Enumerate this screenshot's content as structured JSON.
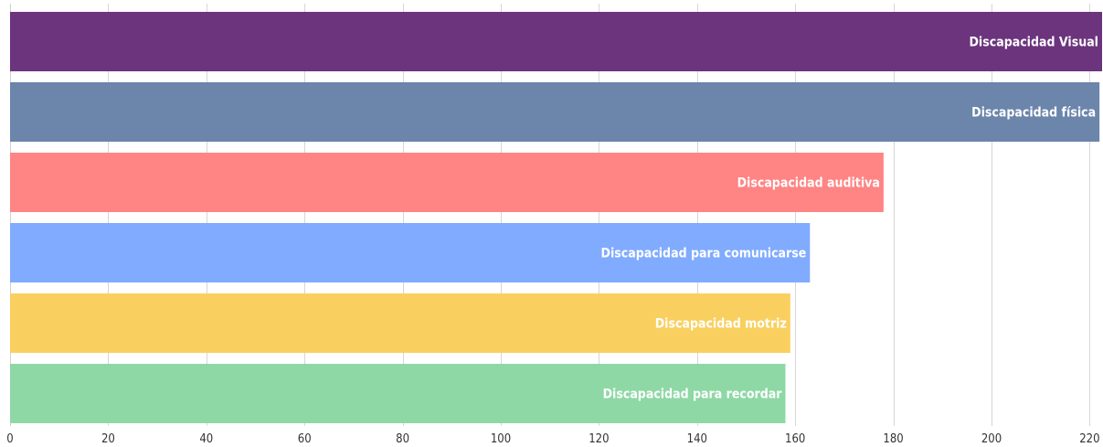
{
  "chart_data": {
    "type": "bar",
    "orientation": "horizontal",
    "categories": [
      "Discapacidad Visual",
      "Discapacidad física",
      "Discapacidad auditiva",
      "Discapacidad para comunicarse",
      "Discapacidad motriz",
      "Discapacidad para recordar"
    ],
    "values": [
      223,
      222,
      178,
      163,
      159,
      158
    ],
    "colors": [
      "#6b347d",
      "#6b85ab",
      "#ff8484",
      "#80abff",
      "#f9d05f",
      "#8ed8a6"
    ],
    "xlim": [
      0,
      224
    ],
    "xticks": [
      0,
      20,
      40,
      60,
      80,
      100,
      120,
      140,
      160,
      180,
      200,
      220
    ],
    "grid": true,
    "legend": "none",
    "title": "",
    "xlabel": "",
    "ylabel": ""
  }
}
